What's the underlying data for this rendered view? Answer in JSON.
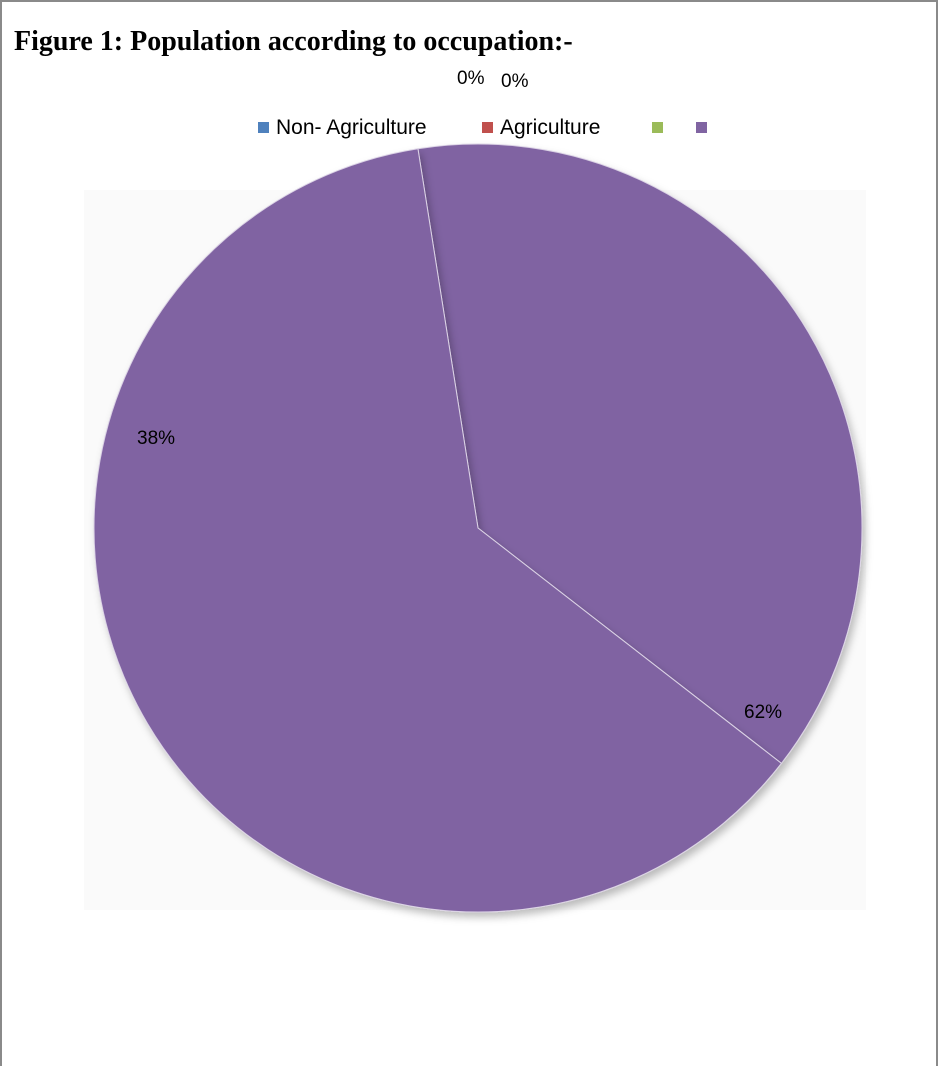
{
  "figure_title": "Figure 1: Population according to occupation:-",
  "chart_data": {
    "type": "pie",
    "title": "",
    "labels": [
      "Non- Agriculture",
      "Agriculture",
      "",
      ""
    ],
    "colors": [
      "#4f81bd",
      "#c0504d",
      "#9bbb59",
      "#8064a2"
    ],
    "values": [
      0,
      0,
      38,
      62
    ],
    "data_labels": [
      "0%",
      "0%",
      "38%",
      "62%"
    ],
    "legend_position": "top"
  }
}
